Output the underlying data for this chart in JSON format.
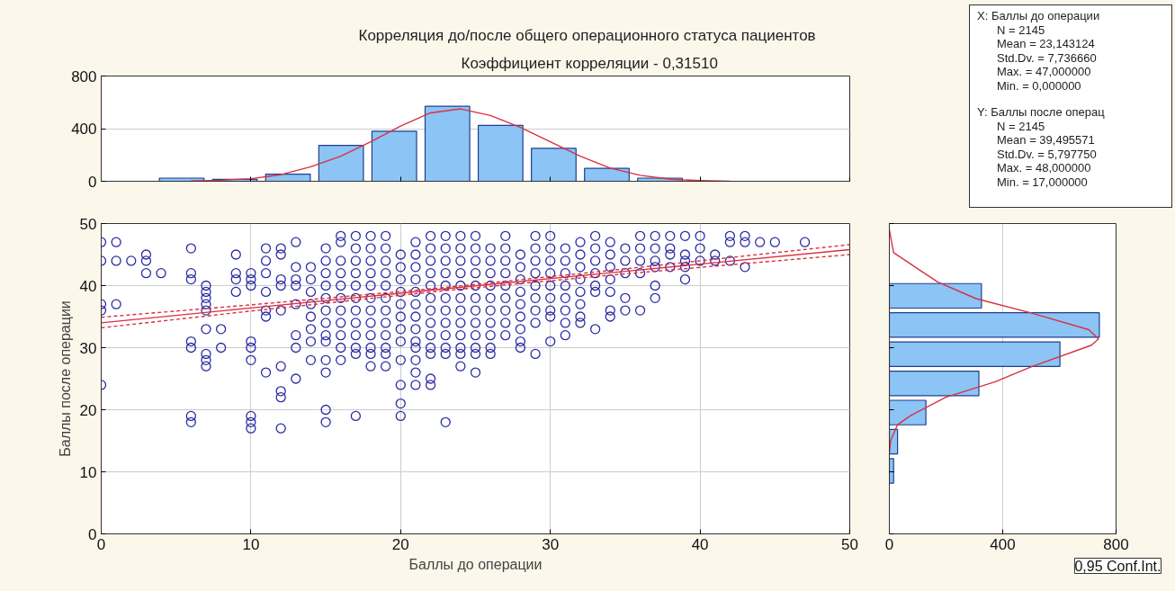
{
  "chart_data": [
    {
      "type": "histogram",
      "title": "Корреляция до/после общего операционного статуса пациентов",
      "subtitle": "Коэффициент корреляции - 0,31510",
      "bins": [
        3.6,
        7.15,
        10.7,
        14.25,
        17.8,
        21.35,
        24.9,
        28.45,
        32.0,
        35.55,
        39.1
      ],
      "values": [
        24,
        15,
        54,
        272,
        381,
        570,
        425,
        250,
        98,
        24
      ],
      "color": "#8cc4f5",
      "series": [
        {
          "type": "line",
          "color": "#d9303f",
          "x": [
            6,
            8,
            10,
            12,
            14,
            16,
            18,
            20,
            22,
            24,
            26,
            28,
            30,
            32,
            34,
            36,
            38,
            40,
            42
          ],
          "values": [
            2,
            8,
            20,
            50,
            110,
            190,
            300,
            420,
            520,
            550,
            500,
            410,
            300,
            190,
            100,
            45,
            15,
            5,
            0
          ]
        }
      ],
      "xlim": [
        0,
        50
      ],
      "ylim": [
        0,
        800
      ],
      "yticks": [
        0,
        400,
        800
      ],
      "grid": "y",
      "tick_labels": "y"
    },
    {
      "type": "other",
      "annotations": [
        "X:  Баллы до операции",
        "N = 2145",
        "Mean = 23,143124",
        "Std.Dv. = 7,736660",
        "Max. = 47,000000",
        "Min. = 0,000000",
        "Y:  Баллы после операц",
        "N = 2145",
        "Mean = 39,495571",
        "Std.Dv. = 5,797750",
        "Max. = 48,000000",
        "Min. = 17,000000"
      ]
    },
    {
      "type": "scatter",
      "xlabel": "Баллы до операции",
      "ylabel": "Баллы после операции",
      "series": [
        {
          "type": "scatter",
          "color": "#2a2aa6",
          "marker": "circle",
          "x": [
            0,
            0,
            0,
            0,
            0,
            1,
            1,
            1,
            2,
            3,
            3,
            3,
            4,
            6,
            6,
            6,
            6,
            6,
            6,
            6,
            7,
            7,
            7,
            7,
            7,
            7,
            7,
            7,
            7,
            8,
            8,
            9,
            9,
            9,
            9,
            10,
            10,
            10,
            10,
            10,
            10,
            10,
            10,
            10,
            11,
            11,
            11,
            11,
            11,
            11,
            11,
            12,
            12,
            12,
            12,
            12,
            12,
            12,
            12,
            12,
            13,
            13,
            13,
            13,
            13,
            13,
            13,
            13,
            14,
            14,
            14,
            14,
            14,
            14,
            14,
            14,
            15,
            15,
            15,
            15,
            15,
            15,
            15,
            15,
            15,
            15,
            15,
            15,
            15,
            16,
            16,
            16,
            16,
            16,
            16,
            16,
            16,
            16,
            16,
            16,
            17,
            17,
            17,
            17,
            17,
            17,
            17,
            17,
            17,
            17,
            17,
            17,
            18,
            18,
            18,
            18,
            18,
            18,
            18,
            18,
            18,
            18,
            18,
            18,
            19,
            19,
            19,
            19,
            19,
            19,
            19,
            19,
            19,
            19,
            19,
            19,
            20,
            20,
            20,
            20,
            20,
            20,
            20,
            20,
            20,
            20,
            20,
            20,
            21,
            21,
            21,
            21,
            21,
            21,
            21,
            21,
            21,
            21,
            21,
            21,
            21,
            22,
            22,
            22,
            22,
            22,
            22,
            22,
            22,
            22,
            22,
            22,
            22,
            22,
            23,
            23,
            23,
            23,
            23,
            23,
            23,
            23,
            23,
            23,
            23,
            23,
            24,
            24,
            24,
            24,
            24,
            24,
            24,
            24,
            24,
            24,
            24,
            24,
            25,
            25,
            25,
            25,
            25,
            25,
            25,
            25,
            25,
            25,
            25,
            25,
            26,
            26,
            26,
            26,
            26,
            26,
            26,
            26,
            26,
            26,
            27,
            27,
            27,
            27,
            27,
            27,
            27,
            27,
            27,
            28,
            28,
            28,
            28,
            28,
            28,
            28,
            28,
            28,
            29,
            29,
            29,
            29,
            29,
            29,
            29,
            29,
            29,
            30,
            30,
            30,
            30,
            30,
            30,
            30,
            30,
            30,
            31,
            31,
            31,
            31,
            31,
            31,
            31,
            31,
            32,
            32,
            32,
            32,
            32,
            32,
            32,
            32,
            33,
            33,
            33,
            33,
            33,
            33,
            33,
            34,
            34,
            34,
            34,
            34,
            34,
            34,
            35,
            35,
            35,
            35,
            35,
            36,
            36,
            36,
            36,
            36,
            37,
            37,
            37,
            37,
            37,
            37,
            38,
            38,
            38,
            38,
            39,
            39,
            39,
            39,
            39,
            40,
            40,
            40,
            41,
            41,
            42,
            42,
            42,
            43,
            43,
            43,
            44,
            45,
            47
          ],
          "values": [
            47,
            44,
            37,
            36,
            24,
            47,
            44,
            37,
            44,
            45,
            44,
            42,
            42,
            46,
            42,
            41,
            31,
            30,
            19,
            18,
            40,
            39,
            38,
            37,
            36,
            33,
            29,
            28,
            27,
            33,
            30,
            45,
            42,
            41,
            39,
            42,
            41,
            40,
            31,
            30,
            28,
            19,
            18,
            17,
            46,
            44,
            42,
            39,
            36,
            35,
            26,
            46,
            45,
            41,
            40,
            36,
            27,
            23,
            22,
            17,
            47,
            43,
            41,
            40,
            37,
            32,
            30,
            25,
            43,
            41,
            39,
            37,
            35,
            33,
            31,
            28,
            46,
            44,
            42,
            40,
            38,
            36,
            34,
            32,
            31,
            28,
            26,
            20,
            18,
            48,
            47,
            44,
            42,
            40,
            38,
            36,
            34,
            32,
            30,
            28,
            48,
            46,
            44,
            42,
            40,
            38,
            36,
            34,
            32,
            30,
            29,
            19,
            48,
            46,
            44,
            42,
            40,
            38,
            36,
            34,
            32,
            30,
            29,
            27,
            48,
            46,
            44,
            42,
            40,
            38,
            36,
            34,
            32,
            30,
            29,
            27,
            45,
            43,
            41,
            39,
            37,
            35,
            33,
            31,
            28,
            24,
            21,
            19,
            47,
            45,
            43,
            41,
            39,
            37,
            35,
            33,
            31,
            30,
            28,
            26,
            24,
            48,
            46,
            44,
            42,
            40,
            38,
            36,
            34,
            32,
            30,
            29,
            25,
            24,
            48,
            46,
            44,
            42,
            40,
            38,
            36,
            34,
            32,
            30,
            29,
            18,
            48,
            46,
            44,
            42,
            40,
            38,
            36,
            34,
            32,
            30,
            29,
            27,
            48,
            46,
            44,
            42,
            40,
            38,
            36,
            34,
            32,
            30,
            29,
            26,
            46,
            44,
            42,
            40,
            38,
            36,
            34,
            32,
            30,
            29,
            48,
            46,
            44,
            42,
            40,
            38,
            36,
            34,
            32,
            45,
            43,
            41,
            39,
            37,
            35,
            33,
            31,
            30,
            48,
            46,
            44,
            42,
            40,
            38,
            36,
            34,
            29,
            48,
            46,
            44,
            42,
            40,
            38,
            36,
            35,
            31,
            46,
            44,
            42,
            40,
            38,
            36,
            34,
            32,
            47,
            45,
            43,
            41,
            39,
            37,
            35,
            34,
            48,
            46,
            44,
            42,
            40,
            39,
            33,
            47,
            45,
            43,
            41,
            39,
            36,
            35,
            46,
            44,
            42,
            38,
            36,
            48,
            46,
            44,
            42,
            36,
            48,
            46,
            44,
            43,
            40,
            38,
            48,
            46,
            45,
            43,
            48,
            45,
            44,
            43,
            41,
            48,
            46,
            44,
            45,
            44,
            48,
            47,
            44,
            48,
            47,
            43,
            47,
            47,
            47
          ]
        },
        {
          "type": "line",
          "color": "#d9303f",
          "marker": "none",
          "line_style": "solid",
          "x": [
            0,
            10,
            23,
            35,
            50
          ],
          "values": [
            34.0,
            36.4,
            39.5,
            42.3,
            45.8
          ]
        },
        {
          "type": "line",
          "color": "#d9303f",
          "marker": "none",
          "line_style": "dashed",
          "x": [
            0,
            10,
            23,
            35,
            50
          ],
          "values": [
            33.2,
            35.9,
            39.2,
            41.9,
            45.0
          ]
        },
        {
          "type": "line",
          "color": "#d9303f",
          "marker": "none",
          "line_style": "dashed",
          "x": [
            0,
            10,
            23,
            35,
            50
          ],
          "values": [
            34.9,
            36.9,
            39.7,
            42.7,
            46.6
          ]
        }
      ],
      "xlim": [
        0,
        50
      ],
      "ylim": [
        0,
        50
      ],
      "xticks": [
        0,
        10,
        20,
        30,
        40,
        50
      ],
      "yticks": [
        0,
        10,
        20,
        30,
        40,
        50
      ],
      "grid": true
    },
    {
      "type": "histogram",
      "orientation": "horizontal",
      "annotations": [
        "0,95 Conf.Int."
      ],
      "bins": [
        7.8,
        12.5,
        17.2,
        21.9,
        26.6,
        31.3,
        36.0,
        40.7
      ],
      "values": [
        15,
        29,
        129,
        316,
        602,
        741,
        325
      ],
      "color": "#8cc4f5",
      "series": [
        {
          "type": "line",
          "color": "#d9303f",
          "x": [
            13.1,
            15.1,
            17.6,
            19.0,
            22.0,
            24.5,
            26.9,
            30.4,
            31.4,
            32.9,
            35.6,
            37.9,
            40.6,
            45.3,
            49.0
          ],
          "values": [
            0,
            5,
            29,
            73,
            199,
            374,
            500,
            713,
            738,
            704,
            500,
            306,
            170,
            15,
            0
          ]
        }
      ],
      "xlim": [
        0,
        800
      ],
      "ylim": [
        0,
        50
      ],
      "xticks": [
        0,
        400,
        800
      ],
      "grid": "x",
      "tick_labels": "x"
    }
  ]
}
